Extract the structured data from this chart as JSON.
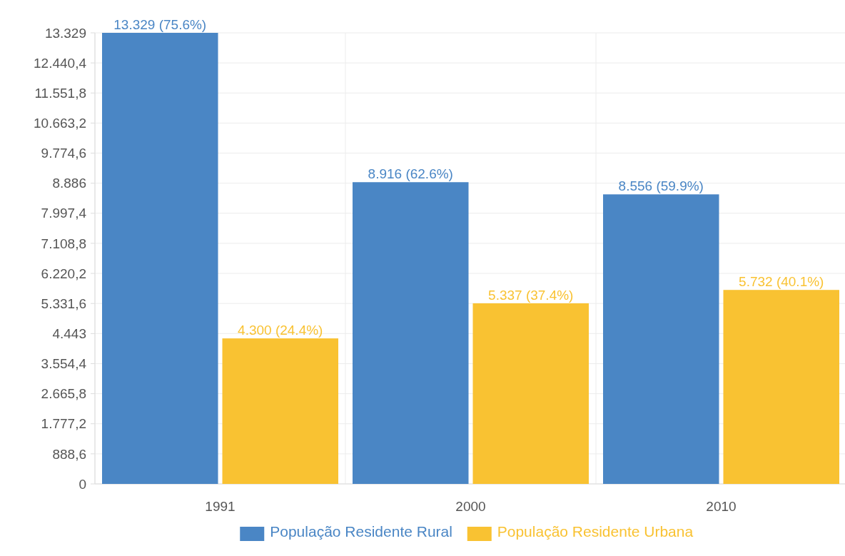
{
  "chart_data": {
    "type": "bar",
    "categories": [
      "1991",
      "2000",
      "2010"
    ],
    "series": [
      {
        "name": "População Residente Rural",
        "color": "#4a86c5",
        "values": [
          13329,
          8916,
          8556
        ],
        "value_labels": [
          "13.329 (75.6%)",
          "8.916 (62.6%)",
          "8.556 (59.9%)"
        ]
      },
      {
        "name": "População Residente Urbana",
        "color": "#f9c232",
        "values": [
          4300,
          5337,
          5732
        ],
        "value_labels": [
          "4.300 (24.4%)",
          "5.337 (37.4%)",
          "5.732 (40.1%)"
        ]
      }
    ],
    "ylim": [
      0,
      13329
    ],
    "yticks": [
      0,
      {
        "value": 888.6,
        "label": "888,6"
      },
      {
        "value": 1777.2,
        "label": "1.777,2"
      },
      {
        "value": 2665.8,
        "label": "2.665,8"
      },
      {
        "value": 3554.4,
        "label": "3.554,4"
      },
      {
        "value": 4443,
        "label": "4.443"
      },
      {
        "value": 5331.6,
        "label": "5.331,6"
      },
      {
        "value": 6220.2,
        "label": "6.220,2"
      },
      {
        "value": 7108.8,
        "label": "7.108,8"
      },
      {
        "value": 7997.4,
        "label": "7.997,4"
      },
      {
        "value": 8886,
        "label": "8.886"
      },
      {
        "value": 9774.6,
        "label": "9.774,6"
      },
      {
        "value": 10663.2,
        "label": "10.663,2"
      },
      {
        "value": 11551.8,
        "label": "11.551,8"
      },
      {
        "value": 12440.4,
        "label": "12.440,4"
      },
      {
        "value": 13329,
        "label": "13.329"
      }
    ],
    "grid": true,
    "legend": "bottom"
  }
}
